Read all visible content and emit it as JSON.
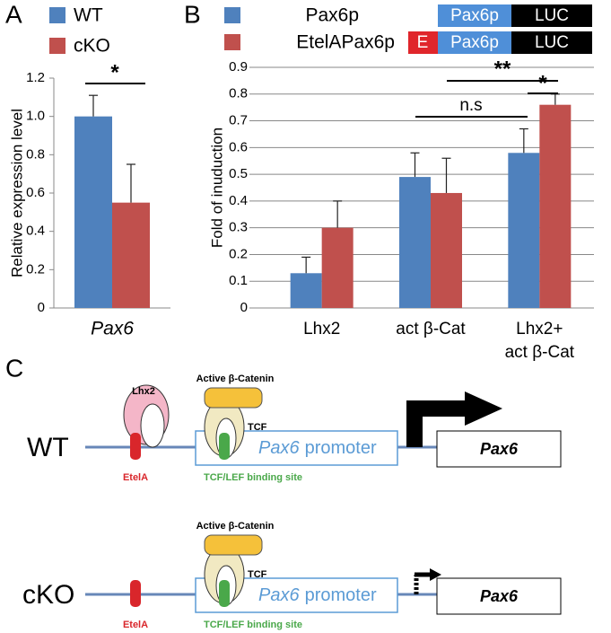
{
  "panel_labels": [
    "A",
    "B",
    "C"
  ],
  "chart_data": [
    {
      "type": "bar",
      "ylabel": "Relative expression level",
      "categories": [
        "Pax6"
      ],
      "series": [
        {
          "name": "WT",
          "color": "#4f81bd",
          "values": [
            1.0
          ],
          "errors": [
            0.11
          ]
        },
        {
          "name": "cKO",
          "color": "#c0504d",
          "values": [
            0.55
          ],
          "errors": [
            0.2
          ]
        }
      ],
      "ylim": [
        0,
        1.2
      ],
      "yticks": [
        0,
        0.2,
        0.4,
        0.6,
        0.8,
        {
          "value": 1,
          "label": "1.0"
        },
        1.2
      ],
      "annotations": [
        "*"
      ],
      "grid": false
    },
    {
      "type": "bar",
      "ylabel": "Fold of inuduction",
      "categories": [
        "Lhx2",
        "act β-Cat",
        "Lhx2+\nact β-Cat"
      ],
      "series": [
        {
          "name": "Pax6p",
          "color": "#4f81bd",
          "values": [
            0.13,
            0.49,
            0.58
          ],
          "errors": [
            0.06,
            0.09,
            0.09
          ],
          "construct": [
            "Pax6p",
            "LUC"
          ]
        },
        {
          "name": "EtelAPax6p",
          "color": "#c0504d",
          "values": [
            0.3,
            0.43,
            0.76
          ],
          "errors": [
            0.1,
            0.13,
            0.04
          ],
          "construct": [
            "E",
            "Pax6p",
            "LUC"
          ]
        }
      ],
      "ylim": [
        0,
        0.9
      ],
      "yticks": [
        0,
        0.1,
        0.2,
        0.3,
        0.4,
        0.5,
        0.6,
        0.7,
        0.8,
        0.9
      ],
      "annotations": [
        "n.s",
        "**",
        "*"
      ],
      "grid": true
    }
  ],
  "diagram": {
    "rows": [
      {
        "genotype": "WT",
        "factor": "Lhx2",
        "catenin": "Active β-Catenin",
        "tcf": "TCF",
        "element": "EtelA",
        "site": "TCF/LEF binding site",
        "promoter_gene": "Pax6",
        "promoter_word": "promoter",
        "gene": "Pax6"
      },
      {
        "genotype": "cKO",
        "catenin": "Active β-Catenin",
        "tcf": "TCF",
        "element": "EtelA",
        "site": "TCF/LEF binding site",
        "promoter_gene": "Pax6",
        "promoter_word": "promoter",
        "gene": "Pax6"
      }
    ]
  }
}
